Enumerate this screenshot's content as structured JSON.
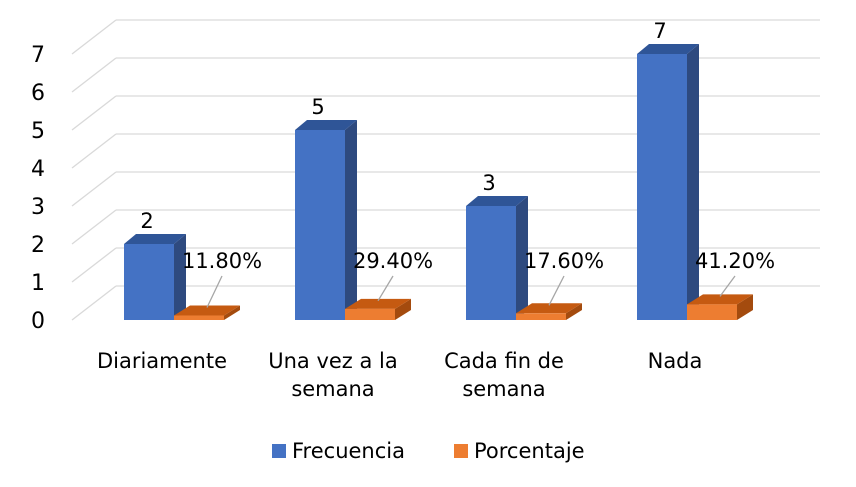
{
  "chart_data": {
    "type": "bar",
    "style": "3d-clustered-column",
    "categories": [
      "Diariamente",
      "Una vez a la semana",
      "Cada fin de semana",
      "Nada"
    ],
    "category_lines": [
      [
        "Diariamente"
      ],
      [
        "Una vez a la",
        "semana"
      ],
      [
        "Cada fin de",
        "semana"
      ],
      [
        "Nada"
      ]
    ],
    "series": [
      {
        "name": "Frecuencia",
        "values": [
          2,
          5,
          3,
          7
        ],
        "labels": [
          "2",
          "5",
          "3",
          "7"
        ],
        "color": "#4472C4",
        "top_color": "#2F5597",
        "side_color": "#2E4A7F"
      },
      {
        "name": "Porcentaje",
        "values": [
          0.118,
          0.294,
          0.176,
          0.412
        ],
        "labels": [
          "11.80%",
          "29.40%",
          "17.60%",
          "41.20%"
        ],
        "color": "#ED7D31",
        "top_color": "#C55A11",
        "side_color": "#A44B0E"
      }
    ],
    "y_ticks": [
      "0",
      "1",
      "2",
      "3",
      "4",
      "5",
      "6",
      "7"
    ],
    "ylim": [
      0,
      7
    ],
    "grid": true,
    "legend_position": "bottom",
    "title": "",
    "xlabel": "",
    "ylabel": ""
  }
}
